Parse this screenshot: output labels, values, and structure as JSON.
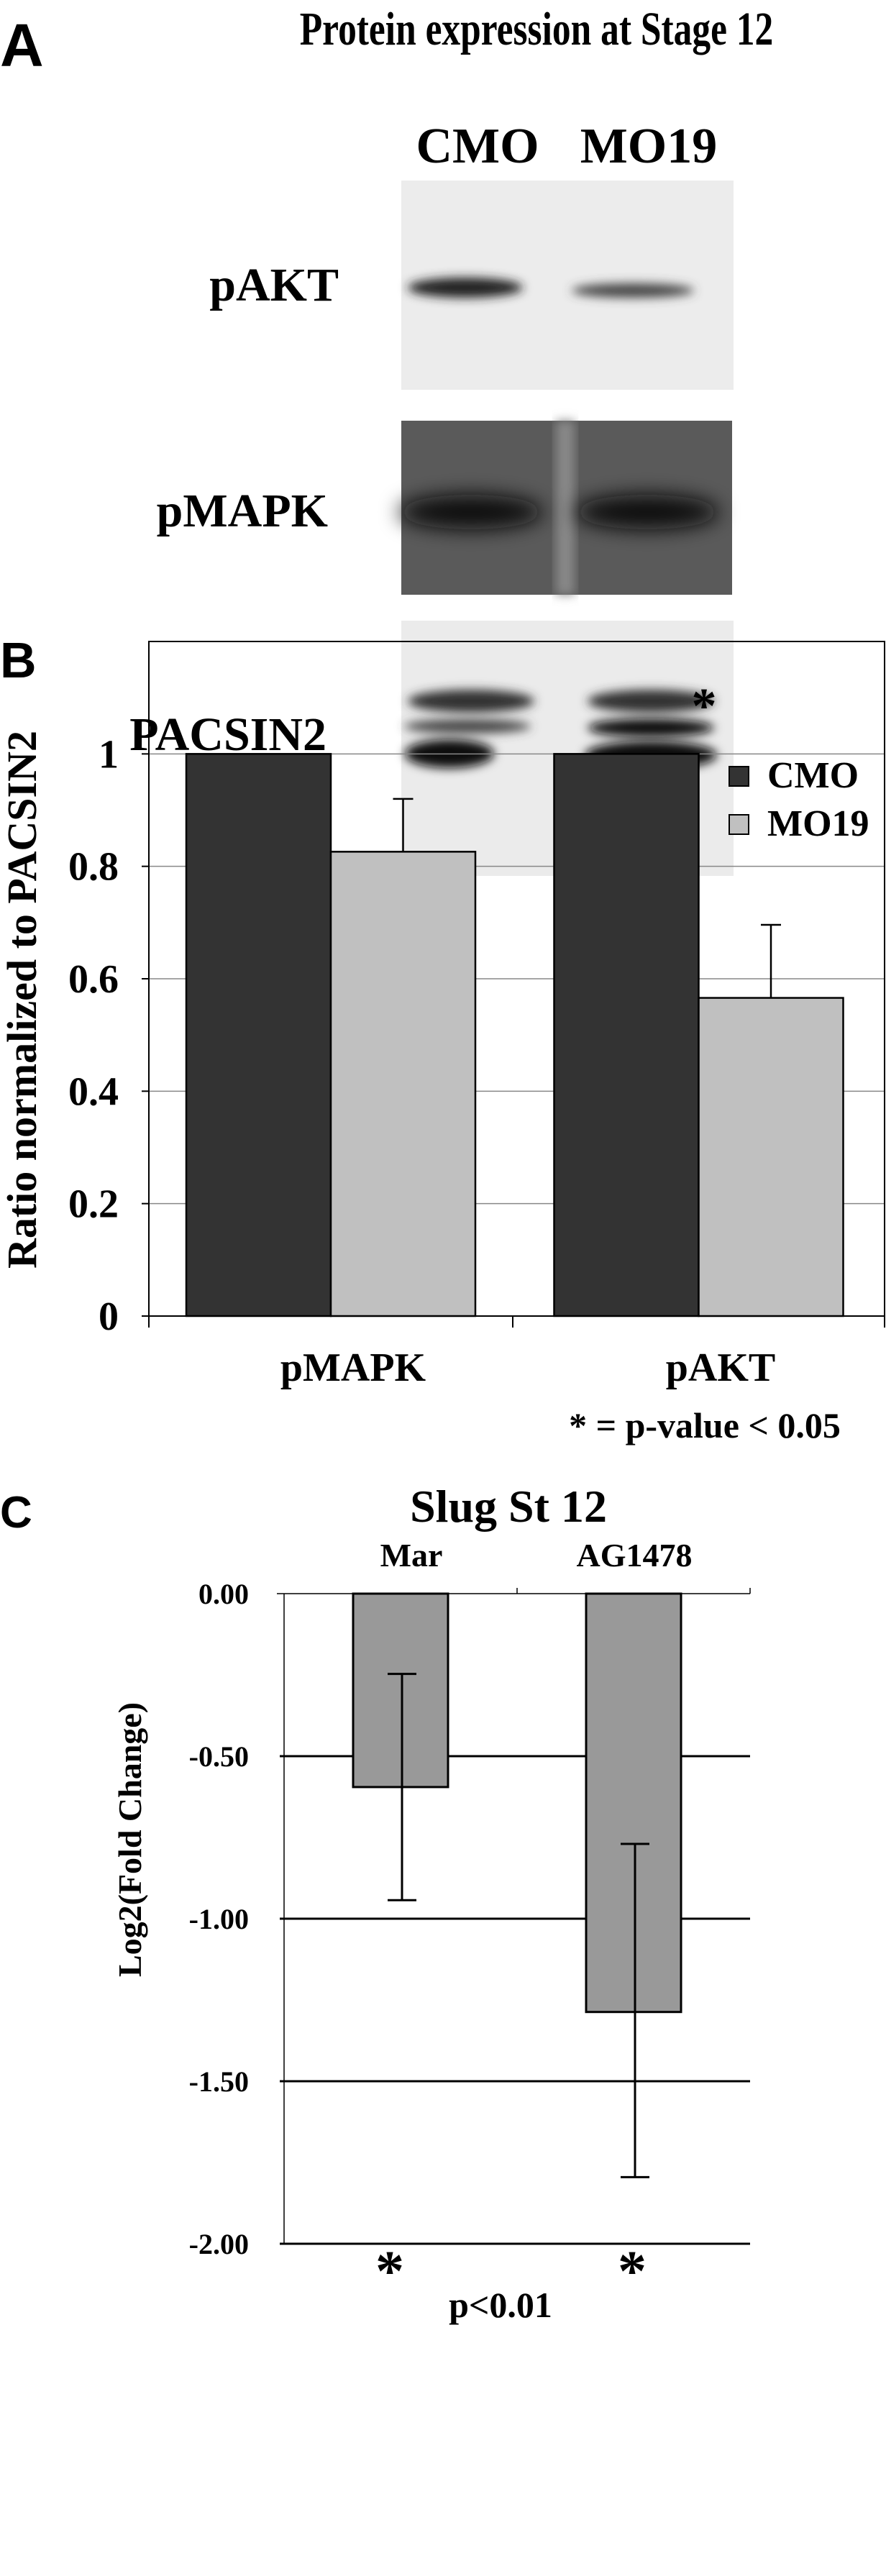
{
  "panel_labels": {
    "a": "A",
    "b": "B",
    "c": "C"
  },
  "panel_a": {
    "title": "Protein expression at Stage 12",
    "lanes": [
      "CMO",
      "MO19"
    ],
    "rows": [
      "pAKT",
      "pMAPK",
      "PACSIN2"
    ]
  },
  "chart_data": [
    {
      "type": "bar",
      "title": "",
      "categories": [
        "pMAPK",
        "pAKT"
      ],
      "series": [
        {
          "name": "CMO",
          "values": [
            1.0,
            1.0
          ],
          "errors": [
            0,
            0
          ],
          "color": "#333333"
        },
        {
          "name": "MO19",
          "values": [
            0.826,
            0.566
          ],
          "errors": [
            0.094,
            0.13
          ],
          "color": "#c0c0c0"
        }
      ],
      "ylabel": "Ratio normalized to PACSIN2",
      "xlabel": "",
      "ylim": [
        0,
        1.2
      ],
      "yticks": [
        "0",
        "0.2",
        "0.4",
        "0.6",
        "0.8",
        "1"
      ],
      "grid": true,
      "legend": "top-right",
      "annotations": {
        "significance_marker": "*",
        "marked_category": "pAKT",
        "footnote": "* = p-value < 0.05"
      }
    },
    {
      "type": "bar",
      "title": "Slug St 12",
      "categories": [
        "Mar",
        "AG1478"
      ],
      "values": [
        -0.595,
        -1.287
      ],
      "error_ranges": [
        [
          -0.247,
          -0.943
        ],
        [
          -0.77,
          -1.795
        ]
      ],
      "color": "#999999",
      "ylabel": "Log2(Fold Change)",
      "xlabel": "",
      "ylim": [
        -2.0,
        0.0
      ],
      "yticks": [
        "0.00",
        "-0.50",
        "-1.00",
        "-1.50",
        "-2.00"
      ],
      "grid": true,
      "annotations": {
        "significance_marker": "*",
        "footnote": "p<0.01"
      }
    }
  ]
}
